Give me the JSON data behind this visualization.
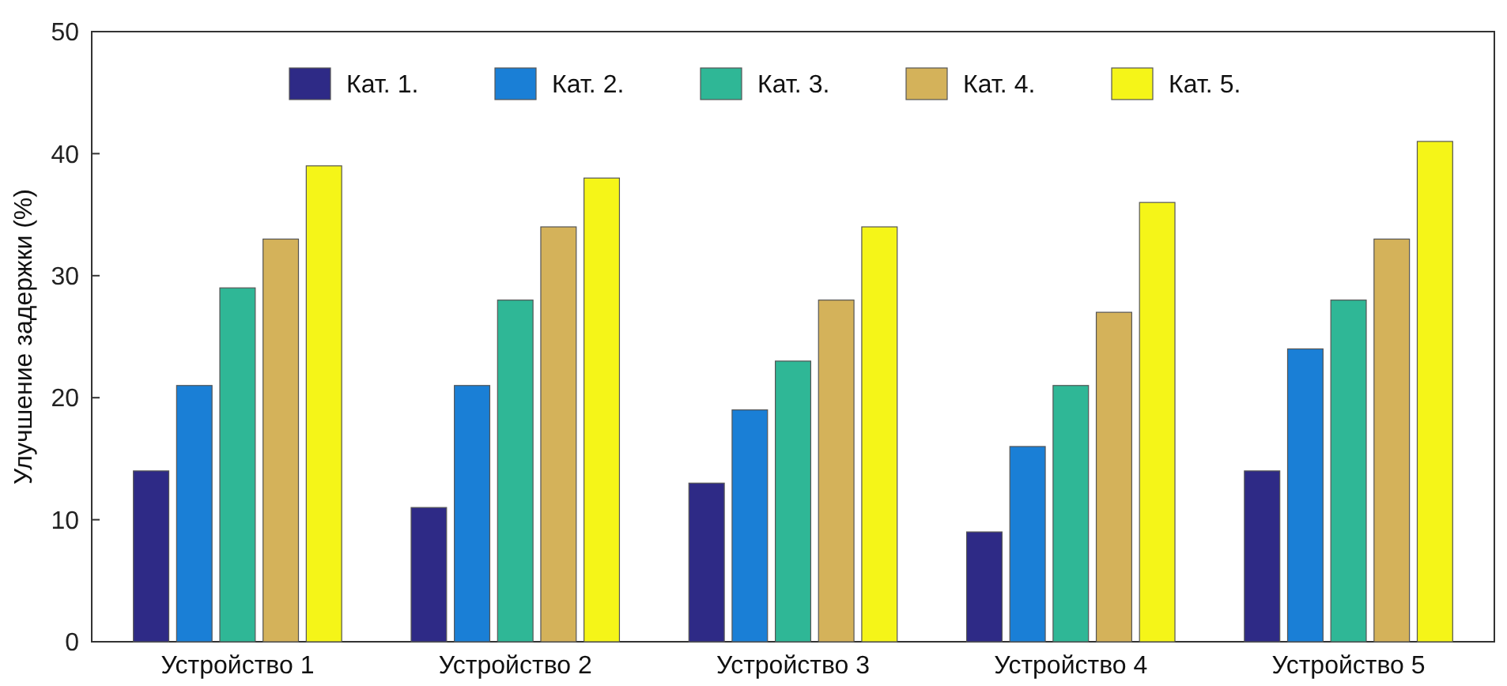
{
  "chart_data": {
    "type": "bar",
    "ylabel": "Улучшение задержки  (%)",
    "categories": [
      "Устройство 1",
      "Устройство 2",
      "Устройство 3",
      "Устройство 4",
      "Устройство 5"
    ],
    "series": [
      {
        "name": "Кат. 1.",
        "color": "#2e2a86",
        "values": [
          14,
          11,
          13,
          9,
          14
        ]
      },
      {
        "name": "Кат. 2.",
        "color": "#1a7fd6",
        "values": [
          21,
          21,
          19,
          16,
          24
        ]
      },
      {
        "name": "Кат. 3.",
        "color": "#2fb796",
        "values": [
          29,
          28,
          23,
          21,
          28
        ]
      },
      {
        "name": "Кат. 4.",
        "color": "#d4b25a",
        "values": [
          33,
          34,
          28,
          27,
          33
        ]
      },
      {
        "name": "Кат. 5.",
        "color": "#f5f518",
        "values": [
          39,
          38,
          34,
          36,
          41
        ]
      }
    ],
    "ylim": [
      0,
      50
    ],
    "yticks": [
      0,
      10,
      20,
      30,
      40,
      50
    ],
    "legend": "top"
  }
}
